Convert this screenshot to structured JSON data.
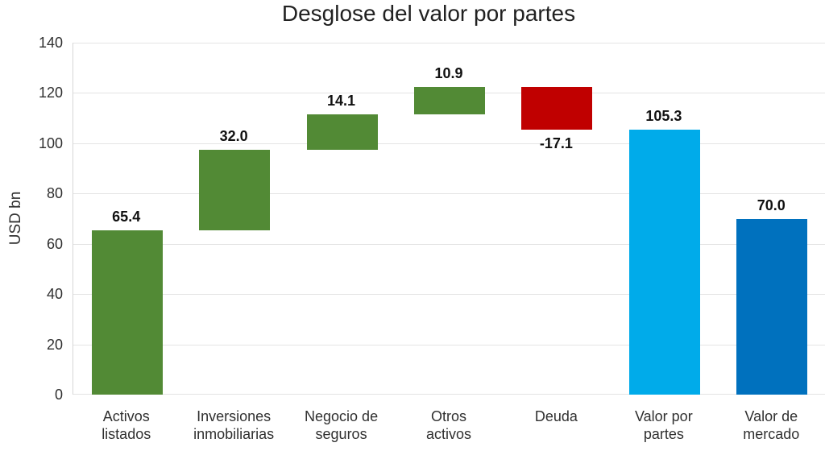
{
  "chart_data": {
    "type": "bar",
    "subtype": "waterfall",
    "title": "Desglose del valor por partes",
    "ylabel": "USD bn",
    "ylim": [
      0,
      140
    ],
    "yticks": [
      0,
      20,
      40,
      60,
      80,
      100,
      120,
      140
    ],
    "grid": true,
    "legend": false,
    "colors": {
      "increase": "#528A35",
      "decrease": "#C00000",
      "total_light_blue": "#00ABEA",
      "total_dark_blue": "#0071BE",
      "gridline": "#e4e4e4",
      "axis_line": "#d6d6d6"
    },
    "categories": [
      "Activos listados",
      "Inversiones inmobiliarias",
      "Negocio de seguros",
      "Otros activos",
      "Deuda",
      "Valor por partes",
      "Valor de mercado"
    ],
    "bars": [
      {
        "category": "Activos listados",
        "category_lines": [
          "Activos",
          "listados"
        ],
        "start": 0,
        "end": 65.4,
        "value": 65.4,
        "value_label": "65.4",
        "color": "#528A35",
        "label_position": "above"
      },
      {
        "category": "Inversiones inmobiliarias",
        "category_lines": [
          "Inversiones",
          "inmobiliarias"
        ],
        "start": 65.4,
        "end": 97.4,
        "value": 32.0,
        "value_label": "32.0",
        "color": "#528A35",
        "label_position": "above"
      },
      {
        "category": "Negocio de seguros",
        "category_lines": [
          "Negocio de",
          "seguros"
        ],
        "start": 97.4,
        "end": 111.5,
        "value": 14.1,
        "value_label": "14.1",
        "color": "#528A35",
        "label_position": "above"
      },
      {
        "category": "Otros activos",
        "category_lines": [
          "Otros",
          "activos"
        ],
        "start": 111.5,
        "end": 122.4,
        "value": 10.9,
        "value_label": "10.9",
        "color": "#528A35",
        "label_position": "above"
      },
      {
        "category": "Deuda",
        "category_lines": [
          "Deuda"
        ],
        "start": 122.4,
        "end": 105.3,
        "value": -17.1,
        "value_label": "-17.1",
        "color": "#C00000",
        "label_position": "below"
      },
      {
        "category": "Valor por partes",
        "category_lines": [
          "Valor por",
          "partes"
        ],
        "start": 0,
        "end": 105.3,
        "value": 105.3,
        "value_label": "105.3",
        "color": "#00ABEA",
        "label_position": "above"
      },
      {
        "category": "Valor de mercado",
        "category_lines": [
          "Valor de",
          "mercado"
        ],
        "start": 0,
        "end": 70.0,
        "value": 70.0,
        "value_label": "70.0",
        "color": "#0071BE",
        "label_position": "above"
      }
    ]
  }
}
